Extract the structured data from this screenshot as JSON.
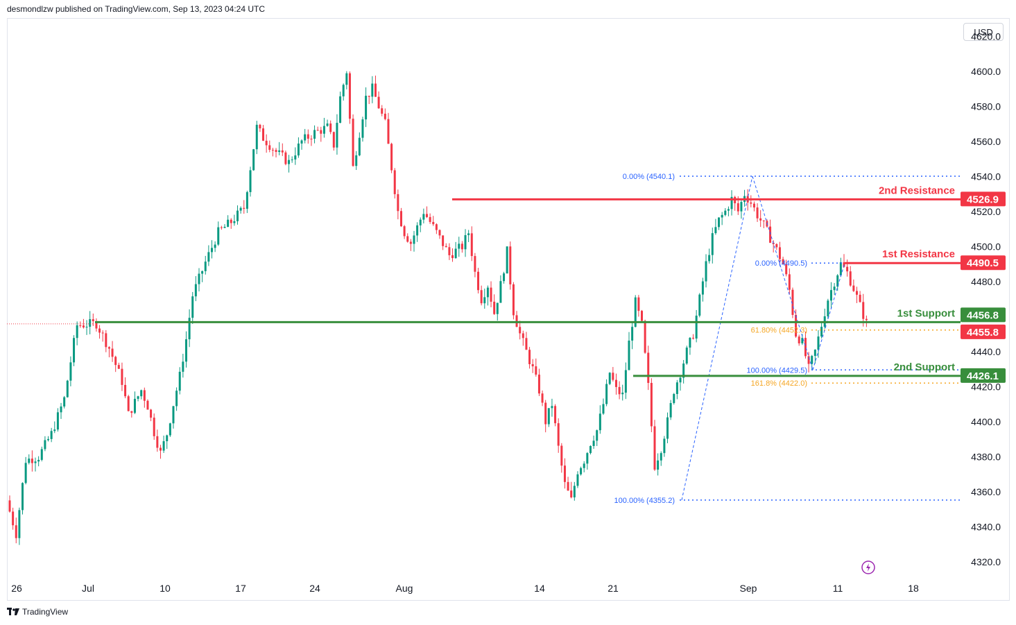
{
  "header": {
    "published_text": "desmondlzw published on TradingView.com, Sep 13, 2023 04:24 UTC"
  },
  "currency_label": "USD",
  "footer": {
    "brand": "TradingView"
  },
  "colors": {
    "up": "#089981",
    "down": "#f23645",
    "support": "#388e3c",
    "resistance": "#f23645",
    "fib_blue": "#2962ff",
    "fib_orange": "#f5a623"
  },
  "chart_data": {
    "type": "candlestick",
    "ylim": [
      4310,
      4630
    ],
    "yticks": [
      4320.0,
      4340.0,
      4360.0,
      4380.0,
      4400.0,
      4420.0,
      4440.0,
      4460.0,
      4480.0,
      4500.0,
      4520.0,
      4540.0,
      4560.0,
      4580.0,
      4600.0,
      4620.0
    ],
    "ytick_labels": [
      "4320.0",
      "4340.0",
      "4360.0",
      "4380.0",
      "4400.0",
      "4420.0",
      "4440.0",
      "4460.0",
      "4480.0",
      "4500.0",
      "4520.0",
      "4540.0",
      "4560.0",
      "4580.0",
      "4600.0",
      "4620.0"
    ],
    "xtick_labels": [
      "26",
      "Jul",
      "10",
      "17",
      "24",
      "Aug",
      "14",
      "21",
      "Sep",
      "11",
      "18"
    ],
    "price_path": [
      [
        0,
        4355
      ],
      [
        1.5,
        4336
      ],
      [
        3,
        4378
      ],
      [
        5,
        4380
      ],
      [
        7,
        4393
      ],
      [
        9,
        4413
      ],
      [
        10.5,
        4445
      ],
      [
        11,
        4455
      ],
      [
        14,
        4456
      ],
      [
        16,
        4442
      ],
      [
        18,
        4423
      ],
      [
        19,
        4404
      ],
      [
        21,
        4418
      ],
      [
        22,
        4409
      ],
      [
        23,
        4394
      ],
      [
        24,
        4382
      ],
      [
        25,
        4393
      ],
      [
        26,
        4410
      ],
      [
        27,
        4426
      ],
      [
        28,
        4447
      ],
      [
        29,
        4472
      ],
      [
        31,
        4491
      ],
      [
        33,
        4508
      ],
      [
        35,
        4514
      ],
      [
        37,
        4522
      ],
      [
        38,
        4545
      ],
      [
        39,
        4568
      ],
      [
        40,
        4562
      ],
      [
        42,
        4554
      ],
      [
        44,
        4548
      ],
      [
        46,
        4560
      ],
      [
        48,
        4565
      ],
      [
        50,
        4568
      ],
      [
        51,
        4558
      ],
      [
        52,
        4585
      ],
      [
        53,
        4600
      ],
      [
        54,
        4545
      ],
      [
        55,
        4565
      ],
      [
        56,
        4585
      ],
      [
        57,
        4590
      ],
      [
        58,
        4580
      ],
      [
        59,
        4570
      ],
      [
        60,
        4545
      ],
      [
        61,
        4520
      ],
      [
        62,
        4508
      ],
      [
        63,
        4502
      ],
      [
        65,
        4520
      ],
      [
        67,
        4508
      ],
      [
        69,
        4495
      ],
      [
        71,
        4500
      ],
      [
        72,
        4508
      ],
      [
        73,
        4485
      ],
      [
        74,
        4470
      ],
      [
        75,
        4478
      ],
      [
        76,
        4462
      ],
      [
        77,
        4478
      ],
      [
        78,
        4497
      ],
      [
        79,
        4463
      ],
      [
        80,
        4450
      ],
      [
        81,
        4440
      ],
      [
        82,
        4430
      ],
      [
        83,
        4418
      ],
      [
        84,
        4400
      ],
      [
        85,
        4410
      ],
      [
        86,
        4385
      ],
      [
        87,
        4364
      ],
      [
        88,
        4355
      ],
      [
        89,
        4372
      ],
      [
        90,
        4378
      ],
      [
        91,
        4388
      ],
      [
        92,
        4395
      ],
      [
        93,
        4410
      ],
      [
        94,
        4428
      ],
      [
        95,
        4418
      ],
      [
        96,
        4415
      ],
      [
        97,
        4445
      ],
      [
        98,
        4468
      ],
      [
        99,
        4455
      ],
      [
        100,
        4420
      ],
      [
        101,
        4375
      ],
      [
        102,
        4385
      ],
      [
        103,
        4400
      ],
      [
        104,
        4418
      ],
      [
        105,
        4428
      ],
      [
        106,
        4440
      ],
      [
        107,
        4450
      ],
      [
        108,
        4470
      ],
      [
        109,
        4490
      ],
      [
        110,
        4505
      ],
      [
        111,
        4515
      ],
      [
        112,
        4520
      ],
      [
        113,
        4527
      ],
      [
        114,
        4520
      ],
      [
        115,
        4530
      ],
      [
        116,
        4525
      ],
      [
        117,
        4518
      ],
      [
        118,
        4512
      ],
      [
        119,
        4505
      ],
      [
        120,
        4498
      ],
      [
        121,
        4490
      ],
      [
        122,
        4475
      ],
      [
        123,
        4450
      ],
      [
        124,
        4445
      ],
      [
        125,
        4430
      ],
      [
        126,
        4440
      ],
      [
        127,
        4455
      ],
      [
        128,
        4470
      ],
      [
        129,
        4480
      ],
      [
        130,
        4490
      ],
      [
        131,
        4485
      ],
      [
        132,
        4476
      ],
      [
        133,
        4466
      ],
      [
        134,
        4456
      ]
    ],
    "price_domain_x": [
      0,
      134
    ],
    "levels": [
      {
        "name": "2nd Resistance",
        "value": "4526.9",
        "kind": "resistance"
      },
      {
        "name": "1st Resistance",
        "value": "4490.5",
        "kind": "resistance"
      },
      {
        "name": "1st Support",
        "value": "4456.8",
        "kind": "support"
      },
      {
        "name": "",
        "value": "4455.8",
        "kind": "current"
      },
      {
        "name": "2nd Support",
        "value": "4426.1",
        "kind": "support"
      }
    ],
    "fib_labels": [
      {
        "text": "0.00% (4540.1)",
        "value": 4540.1,
        "color": "blue"
      },
      {
        "text": "100.00% (4355.2)",
        "value": 4355.2,
        "color": "blue"
      },
      {
        "text": "0.00% (4490.5)",
        "value": 4490.5,
        "color": "blue"
      },
      {
        "text": "61.80% (4452.3)",
        "value": 4452.3,
        "color": "orange"
      },
      {
        "text": "100.00% (4429.5)",
        "value": 4429.5,
        "color": "blue"
      },
      {
        "text": "161.8% (4422.0)",
        "value": 4422.0,
        "color": "orange"
      }
    ]
  }
}
